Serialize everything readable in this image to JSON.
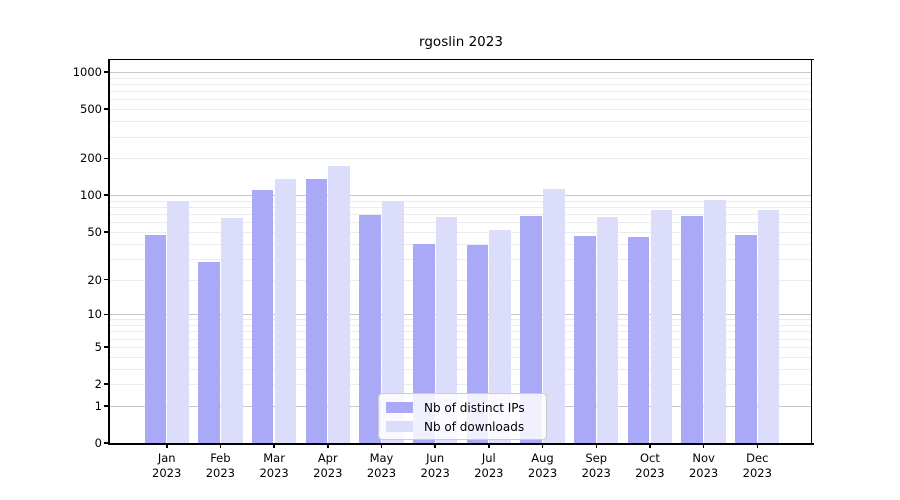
{
  "figure": {
    "title": "rgoslin 2023"
  },
  "chart_data": {
    "type": "bar",
    "title": "rgoslin 2023",
    "x_months": [
      "Jan",
      "Feb",
      "Mar",
      "Apr",
      "May",
      "Jun",
      "Jul",
      "Aug",
      "Sep",
      "Oct",
      "Nov",
      "Dec"
    ],
    "x_year": "2023",
    "series": [
      {
        "name": "Nb of distinct IPs",
        "color": "#a9a9f8",
        "values": [
          47,
          28,
          110,
          136,
          69,
          40,
          39,
          67,
          46,
          45,
          67,
          47
        ]
      },
      {
        "name": "Nb of downloads",
        "color": "#dcdcfb",
        "values": [
          89,
          65,
          135,
          174,
          89,
          66,
          52,
          112,
          66,
          76,
          92,
          75
        ]
      }
    ],
    "y_scale": "log1p",
    "y_axis_ticks": [
      0,
      1,
      2,
      5,
      10,
      20,
      50,
      100,
      200,
      500,
      1000
    ],
    "y_major_gridlines": [
      1,
      10,
      100,
      1000
    ],
    "ylim": [
      0,
      1400
    ],
    "grid": true,
    "legend_position": "lower-center",
    "colors": {
      "grid_major": "#c7c7c7",
      "grid_minor": "#ececec",
      "spine": "#000000",
      "text": "#000000",
      "background": "#ffffff"
    }
  }
}
